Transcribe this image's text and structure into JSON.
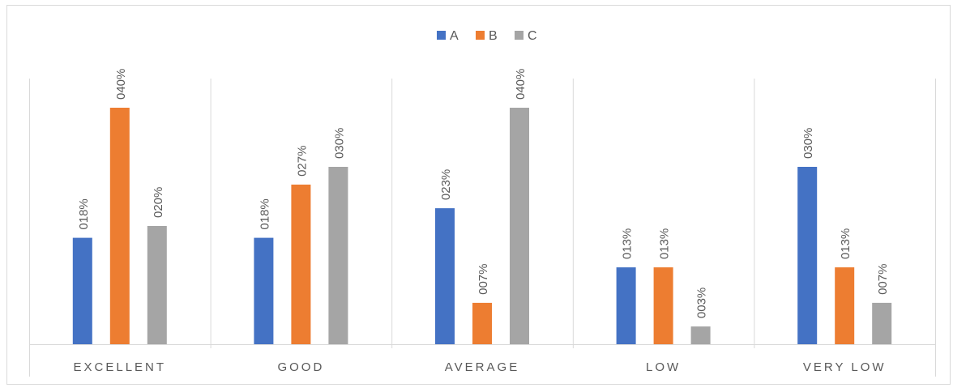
{
  "chart_data": {
    "type": "bar",
    "title": "",
    "xlabel": "",
    "ylabel": "",
    "categories": [
      "EXCELLENT",
      "GOOD",
      "AVERAGE",
      "LOW",
      "VERY LOW"
    ],
    "series": [
      {
        "name": "A",
        "color": "#4472C4",
        "values": [
          18,
          18,
          23,
          13,
          30
        ],
        "labels": [
          "018%",
          "018%",
          "023%",
          "013%",
          "030%"
        ]
      },
      {
        "name": "B",
        "color": "#ED7D31",
        "values": [
          40,
          27,
          7,
          13,
          13
        ],
        "labels": [
          "040%",
          "027%",
          "007%",
          "013%",
          "013%"
        ]
      },
      {
        "name": "C",
        "color": "#A5A5A5",
        "values": [
          20,
          30,
          40,
          3,
          7
        ],
        "labels": [
          "020%",
          "030%",
          "040%",
          "003%",
          "007%"
        ]
      }
    ],
    "ylim": [
      0,
      40
    ],
    "value_unit": "%",
    "legend_position": "top-center",
    "gridlines": "vertical category separators",
    "axis_color": "#D9D9D9",
    "label_color": "#595959"
  }
}
